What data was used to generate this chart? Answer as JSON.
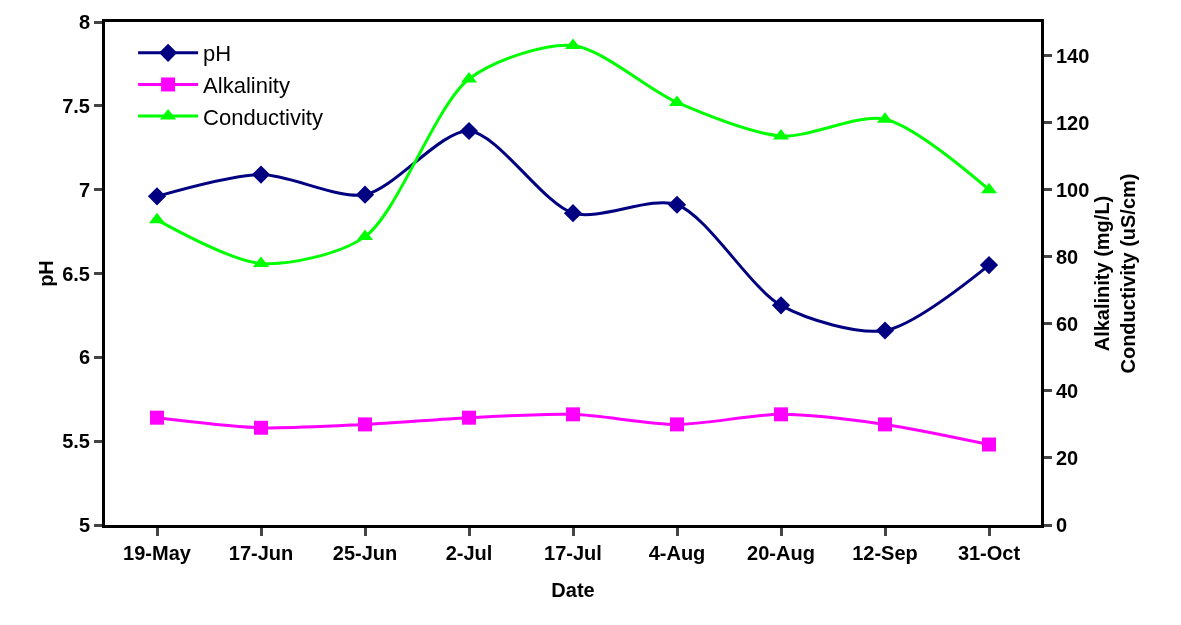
{
  "chart_data": {
    "type": "line",
    "xlabel": "Date",
    "ylabel": "pH",
    "y2label": "Alkalinity (mg/L)\nConductivity (uS/cm)",
    "categories": [
      "19-May",
      "17-Jun",
      "25-Jun",
      "2-Jul",
      "17-Jul",
      "4-Aug",
      "20-Aug",
      "12-Sep",
      "31-Oct"
    ],
    "series": [
      {
        "name": "pH",
        "color": "#000080",
        "marker": "diamond",
        "values": [
          6.96,
          7.09,
          6.97,
          7.35,
          6.86,
          6.91,
          6.31,
          6.16,
          6.55
        ]
      },
      {
        "name": "Alkalinity",
        "color": "#ff00ff",
        "marker": "square",
        "axis": "y2",
        "values": [
          32,
          29,
          30,
          32,
          33,
          30,
          33,
          30,
          24
        ]
      },
      {
        "name": "Conductivity",
        "color": "#00ff00",
        "marker": "triangle",
        "axis": "y2",
        "values": [
          91,
          78,
          86,
          133,
          143,
          126,
          116,
          121,
          100
        ]
      }
    ],
    "ylim": [
      5,
      8
    ],
    "yticks": [
      5,
      5.5,
      6,
      6.5,
      7,
      7.5,
      8
    ],
    "y2lim": [
      0,
      150
    ],
    "y2ticks": [
      0,
      20,
      40,
      60,
      80,
      100,
      120,
      140
    ],
    "grid": false,
    "legend": "top left",
    "line_style": "solid"
  }
}
